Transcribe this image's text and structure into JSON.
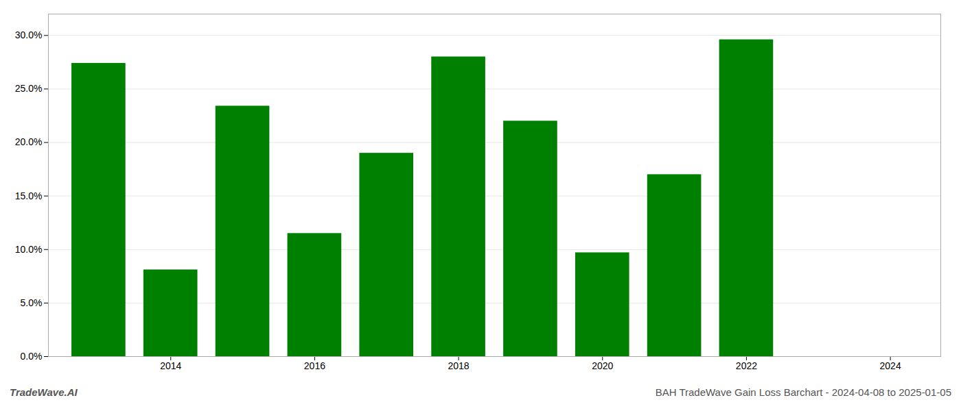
{
  "chart_data": {
    "type": "bar",
    "x": [
      2013,
      2014,
      2015,
      2016,
      2017,
      2018,
      2019,
      2020,
      2021,
      2022
    ],
    "values": [
      0.274,
      0.081,
      0.234,
      0.115,
      0.19,
      0.28,
      0.22,
      0.097,
      0.17,
      0.296
    ],
    "color": "#008000",
    "xlim": [
      2012.3,
      2024.7
    ],
    "xticks": [
      2014,
      2016,
      2018,
      2020,
      2022,
      2024
    ],
    "ylim": [
      0,
      0.32
    ],
    "yticks": [
      {
        "value": 0.0,
        "label": "0.0%"
      },
      {
        "value": 0.05,
        "label": "5.0%"
      },
      {
        "value": 0.1,
        "label": "10.0%"
      },
      {
        "value": 0.15,
        "label": "15.0%"
      },
      {
        "value": 0.2,
        "label": "20.0%"
      },
      {
        "value": 0.25,
        "label": "25.0%"
      },
      {
        "value": 0.3,
        "label": "30.0%"
      }
    ],
    "grid": true,
    "annotations": [
      "TradeWave.AI",
      "BAH TradeWave Gain Loss Barchart - 2024-04-08 to 2025-01-05"
    ]
  }
}
